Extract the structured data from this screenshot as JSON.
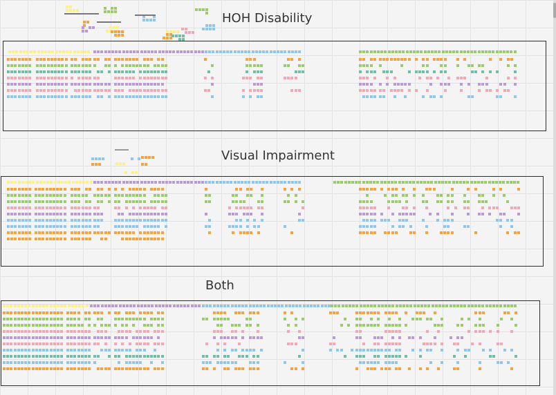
{
  "sections": [
    {
      "id": "hoh",
      "title": "HOH Disability"
    },
    {
      "id": "visual",
      "title": "Visual Impairment"
    },
    {
      "id": "both",
      "title": "Both"
    }
  ],
  "colors": {
    "yellow": "#fbf089",
    "orange": "#f6a33e",
    "green": "#9acd6a",
    "teal": "#6fbfa6",
    "pink": "#f3a7b4",
    "purple": "#b99ad6",
    "blue": "#8fc6f0",
    "lilac": "#c9a8e0",
    "frame": "#2b2b2b",
    "grid": "#e2e2e2",
    "canvas": "#f4f4f4"
  }
}
